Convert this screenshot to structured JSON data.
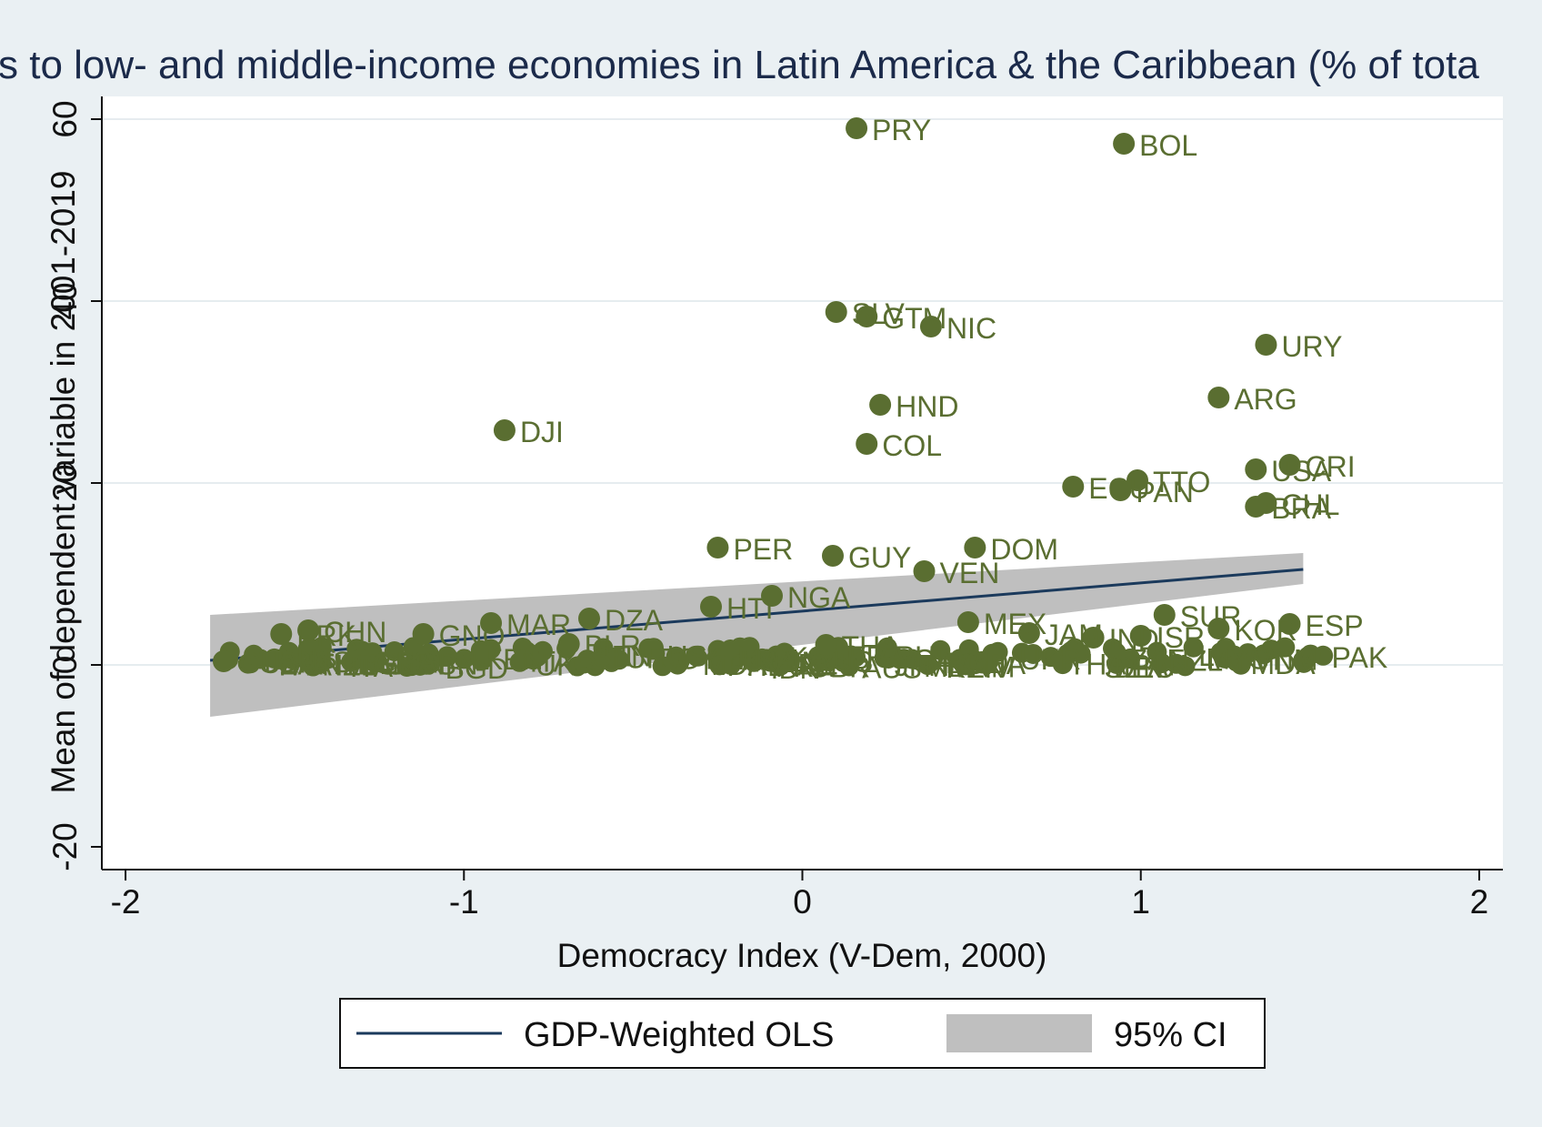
{
  "chart_data": {
    "type": "scatter",
    "title": "s to low- and middle-income economies in Latin America & the Caribbean (% of tota",
    "xlabel": "Democracy Index (V-Dem, 2000)",
    "ylabel": "Mean of dependent variable in 2001-2019",
    "xlim": [
      -2.07,
      2.07
    ],
    "ylim": [
      -22.5,
      62.5
    ],
    "xticks": [
      -2,
      -1,
      0,
      1,
      2
    ],
    "xtick_labels": [
      "-2",
      "-1",
      "0",
      "1",
      "2"
    ],
    "yticks": [
      -20,
      0,
      20,
      40,
      60
    ],
    "ytick_labels": [
      "-20",
      "0",
      "20",
      "40",
      "60"
    ],
    "grid": "horizontal",
    "colors": {
      "background": "#eaf0f3",
      "plot_background": "#ffffff",
      "points": "#5a6e31",
      "fit_line": "#1b3a5c",
      "ci_band": "#bfbfbf",
      "title": "#1b2a4a"
    },
    "fit": {
      "name": "GDP-Weighted OLS",
      "x": [
        -1.75,
        1.48
      ],
      "y": [
        0.5,
        10.5
      ],
      "ci_upper": [
        5.5,
        12.3
      ],
      "ci_lower": [
        -5.7,
        8.9
      ]
    },
    "legend": {
      "position": "bottom",
      "items": [
        {
          "label": "GDP-Weighted OLS",
          "kind": "line",
          "color": "#1b3a5c"
        },
        {
          "label": "95% CI",
          "kind": "area",
          "color": "#bfbfbf"
        }
      ]
    },
    "points": [
      {
        "label": "PRY",
        "x": 0.16,
        "y": 59.0
      },
      {
        "label": "BOL",
        "x": 0.95,
        "y": 57.3
      },
      {
        "label": "SLV",
        "x": 0.1,
        "y": 38.8
      },
      {
        "label": "GTM",
        "x": 0.19,
        "y": 38.3
      },
      {
        "label": "NIC",
        "x": 0.38,
        "y": 37.2
      },
      {
        "label": "URY",
        "x": 1.37,
        "y": 35.2
      },
      {
        "label": "ARG",
        "x": 1.23,
        "y": 29.4
      },
      {
        "label": "HND",
        "x": 0.23,
        "y": 28.6
      },
      {
        "label": "DJI",
        "x": -0.88,
        "y": 25.8
      },
      {
        "label": "COL",
        "x": 0.19,
        "y": 24.3
      },
      {
        "label": "CRI",
        "x": 1.44,
        "y": 22.0
      },
      {
        "label": "USA",
        "x": 1.34,
        "y": 21.5
      },
      {
        "label": "TTO",
        "x": 0.99,
        "y": 20.3
      },
      {
        "label": "ECU",
        "x": 0.8,
        "y": 19.6
      },
      {
        "label": "PAN",
        "x": 0.94,
        "y": 19.2
      },
      {
        "label": "CHL",
        "x": 1.37,
        "y": 17.8
      },
      {
        "label": "BRA",
        "x": 1.34,
        "y": 17.4
      },
      {
        "label": "PER",
        "x": -0.25,
        "y": 12.9
      },
      {
        "label": "DOM",
        "x": 0.51,
        "y": 12.9
      },
      {
        "label": "GUY",
        "x": 0.09,
        "y": 12.0
      },
      {
        "label": "VEN",
        "x": 0.36,
        "y": 10.3
      },
      {
        "label": "NGA",
        "x": -0.09,
        "y": 7.6
      },
      {
        "label": "HTI",
        "x": -0.27,
        "y": 6.4
      },
      {
        "label": "SUR",
        "x": 1.07,
        "y": 5.5
      },
      {
        "label": "MEX",
        "x": 0.49,
        "y": 4.7
      },
      {
        "label": "ESP",
        "x": 1.44,
        "y": 4.5
      },
      {
        "label": "KOR",
        "x": 1.23,
        "y": 4.0
      },
      {
        "label": "DZA",
        "x": -0.63,
        "y": 5.1
      },
      {
        "label": "MAR",
        "x": -0.92,
        "y": 4.6
      },
      {
        "label": "CHN",
        "x": -1.46,
        "y": 3.8
      },
      {
        "label": "GNQ",
        "x": -1.12,
        "y": 3.4
      },
      {
        "label": "JAM",
        "x": 0.67,
        "y": 3.5
      },
      {
        "label": "IND",
        "x": 0.86,
        "y": 3.0
      },
      {
        "label": "ISR",
        "x": 1.0,
        "y": 3.2
      },
      {
        "label": "PRK",
        "x": -1.54,
        "y": 3.4
      },
      {
        "label": "BLR",
        "x": -0.69,
        "y": 2.3
      },
      {
        "label": "THA",
        "x": 0.07,
        "y": 2.2
      },
      {
        "label": "CUB",
        "x": -1.71,
        "y": 0.4
      }
    ]
  },
  "background_points": {
    "note": "",
    "count": 0
  }
}
